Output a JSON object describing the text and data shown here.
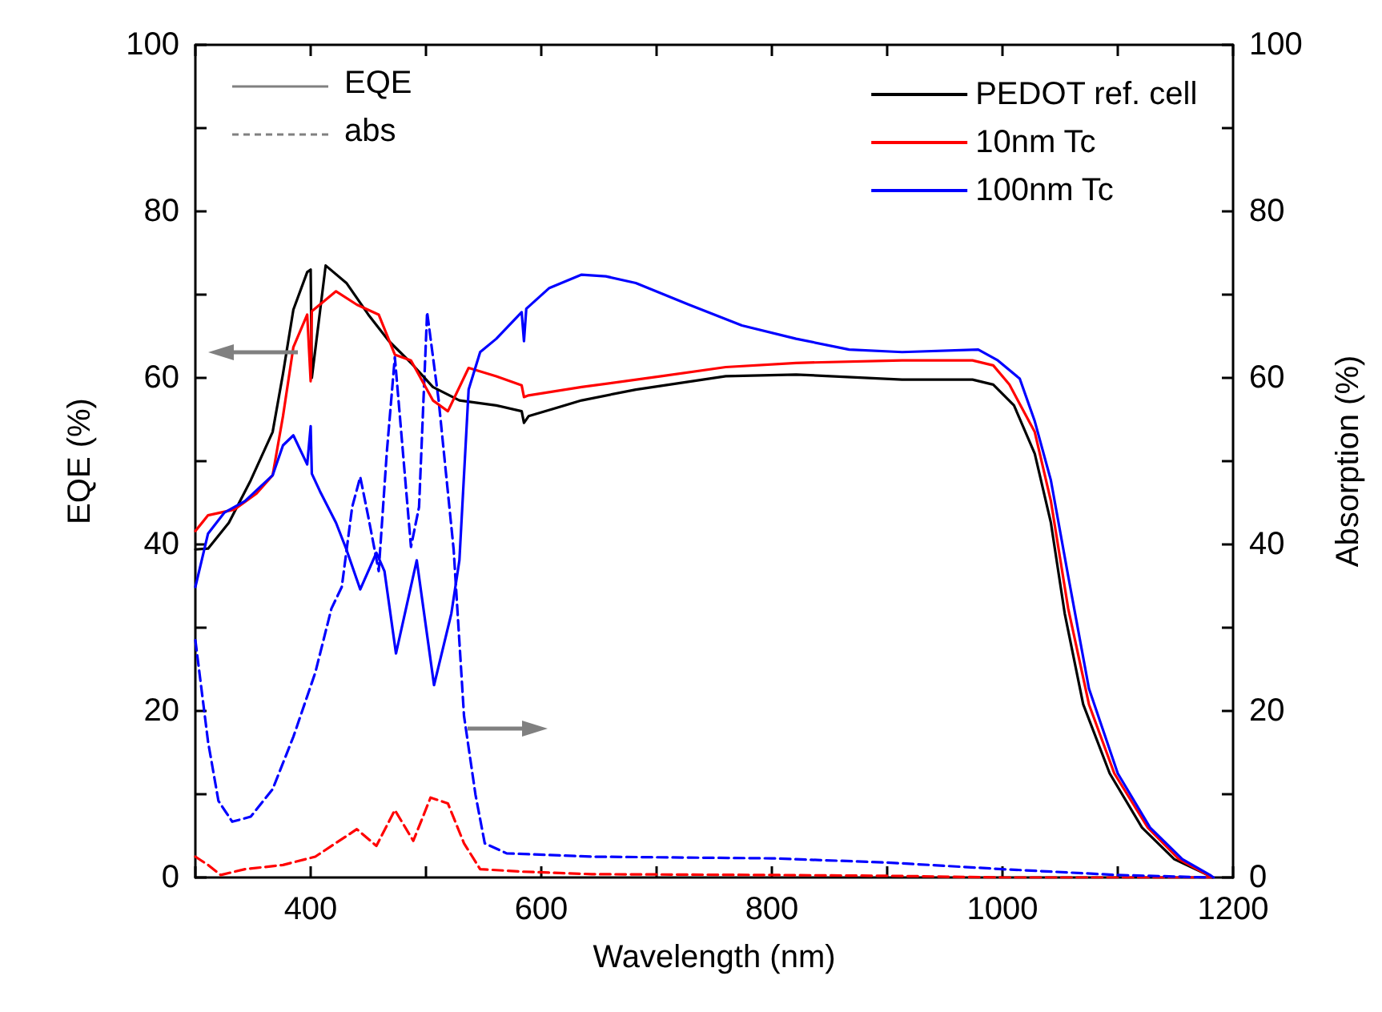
{
  "chart_data": {
    "type": "line",
    "xlabel": "Wavelength (nm)",
    "ylabel": "EQE (%)",
    "y2label": "Absorption (%)",
    "annotations": [
      "EQE",
      "abs"
    ],
    "xlim": [
      300,
      1200
    ],
    "xticks": [
      {
        "value": 300,
        "label": null
      },
      400,
      {
        "value": 500,
        "label": null
      },
      600,
      {
        "value": 700,
        "label": null
      },
      800,
      {
        "value": 900,
        "label": null
      },
      1000,
      {
        "value": 1100,
        "label": null
      },
      1200
    ],
    "ylim": [
      0,
      100
    ],
    "yticks": [
      0,
      {
        "value": 10,
        "label": null
      },
      20,
      {
        "value": 30,
        "label": null
      },
      40,
      {
        "value": 50,
        "label": null
      },
      60,
      {
        "value": 70,
        "label": null
      },
      80,
      {
        "value": 90,
        "label": null
      },
      100
    ],
    "y2lim": [
      0,
      100
    ],
    "y2ticks": [
      0,
      {
        "value": 10,
        "label": null
      },
      20,
      {
        "value": 30,
        "label": null
      },
      40,
      {
        "value": 50,
        "label": null
      },
      60,
      {
        "value": 70,
        "label": null
      },
      80,
      {
        "value": 90,
        "label": null
      },
      100
    ],
    "grid": false,
    "legend": "top right",
    "marker": "none",
    "series": [
      {
        "name": "PEDOT ref. cell",
        "color": "#000000",
        "line_style": "solid",
        "x": [
          300,
          311,
          329,
          348,
          367,
          376,
          385,
          397,
          400,
          401,
          413,
          431,
          450,
          468,
          487,
          506,
          529,
          561,
          583,
          585,
          589,
          635,
          682,
          760,
          821,
          913,
          974,
          992,
          1010,
          1028,
          1042,
          1054,
          1070,
          1093,
          1121,
          1149,
          1178,
          1182
        ],
        "values": [
          39.4,
          39.5,
          42.6,
          47.7,
          53.5,
          60.5,
          68.2,
          72.7,
          73.0,
          60.0,
          73.5,
          71.4,
          67.6,
          64.4,
          61.8,
          58.9,
          57.3,
          56.7,
          56.0,
          54.6,
          55.4,
          57.3,
          58.6,
          60.2,
          60.4,
          59.8,
          59.8,
          59.2,
          56.7,
          50.9,
          42.6,
          31.7,
          20.8,
          12.5,
          6.0,
          2.2,
          0.3,
          0
        ]
      },
      {
        "name": "10nm Tc",
        "color": "#ff0000",
        "line_style": "solid",
        "x": [
          300,
          311,
          334,
          353,
          367,
          376,
          385,
          397,
          400,
          401,
          422,
          440,
          459,
          473,
          487,
          506,
          519,
          537,
          561,
          583,
          585,
          589,
          635,
          704,
          760,
          821,
          913,
          974,
          992,
          1006,
          1028,
          1042,
          1057,
          1075,
          1097,
          1126,
          1153,
          1178,
          1182
        ],
        "values": [
          41.6,
          43.5,
          44.2,
          46.1,
          48.3,
          55.4,
          63.7,
          67.6,
          59.6,
          68.0,
          70.4,
          68.8,
          67.6,
          62.8,
          62.1,
          57.3,
          56.0,
          61.2,
          60.2,
          59.1,
          57.7,
          57.9,
          58.9,
          60.2,
          61.3,
          61.8,
          62.1,
          62.1,
          61.5,
          59.2,
          53.5,
          45.2,
          32.3,
          20.8,
          12.5,
          6.0,
          2.2,
          0.3,
          0
        ]
      },
      {
        "name": "100nm Tc",
        "color": "#0000ff",
        "line_style": "solid",
        "x": [
          300,
          311,
          325,
          343,
          367,
          376,
          385,
          397,
          400,
          401,
          408,
          422,
          431,
          443,
          457,
          464,
          474,
          492,
          507,
          522,
          529,
          537,
          547,
          561,
          583,
          585,
          587,
          607,
          635,
          656,
          682,
          728,
          774,
          821,
          867,
          913,
          979,
          996,
          1015,
          1028,
          1042,
          1057,
          1075,
          1100,
          1128,
          1156,
          1180,
          1183
        ],
        "values": [
          34.9,
          41.3,
          43.8,
          45.2,
          48.3,
          51.9,
          53.1,
          49.6,
          54.2,
          48.5,
          46.4,
          42.6,
          39.4,
          34.6,
          39.0,
          36.8,
          26.9,
          38.1,
          23.1,
          31.7,
          38.1,
          58.6,
          63.1,
          64.7,
          67.9,
          64.4,
          68.3,
          70.8,
          72.4,
          72.2,
          71.4,
          68.8,
          66.3,
          64.7,
          63.4,
          63.1,
          63.4,
          62.1,
          59.9,
          54.8,
          47.7,
          36.2,
          22.7,
          12.5,
          6.0,
          2.2,
          0.3,
          0
        ]
      },
      {
        "color": "#ff0000",
        "line_style": "dashed",
        "axis": "y2",
        "x": [
          300,
          311,
          322,
          343,
          376,
          404,
          440,
          457,
          473,
          489,
          504,
          519,
          533,
          547,
          584,
          644,
          800,
          900,
          1000,
          1180
        ],
        "values": [
          2.5,
          1.5,
          0.3,
          1.0,
          1.5,
          2.5,
          5.8,
          3.8,
          8.1,
          4.4,
          9.6,
          8.9,
          4.1,
          1.0,
          0.7,
          0.4,
          0.3,
          0.2,
          0,
          0
        ]
      },
      {
        "color": "#0000ff",
        "line_style": "dashed",
        "axis": "y2",
        "x": [
          300,
          311,
          320,
          332,
          348,
          367,
          385,
          404,
          418,
          427,
          436,
          443,
          450,
          459,
          466,
          473,
          487,
          494,
          501,
          511,
          524,
          533,
          543,
          551,
          570,
          644,
          800,
          900,
          1000,
          1100,
          1180
        ],
        "values": [
          28.5,
          16.3,
          9.2,
          6.7,
          7.3,
          10.6,
          16.9,
          24.6,
          32.3,
          34.9,
          44.5,
          48.1,
          43.3,
          36.8,
          51.0,
          62.5,
          39.7,
          44.5,
          67.9,
          57.3,
          39.4,
          19.4,
          9.9,
          4.1,
          2.9,
          2.5,
          2.3,
          1.8,
          1.0,
          0.3,
          0
        ]
      }
    ]
  }
}
